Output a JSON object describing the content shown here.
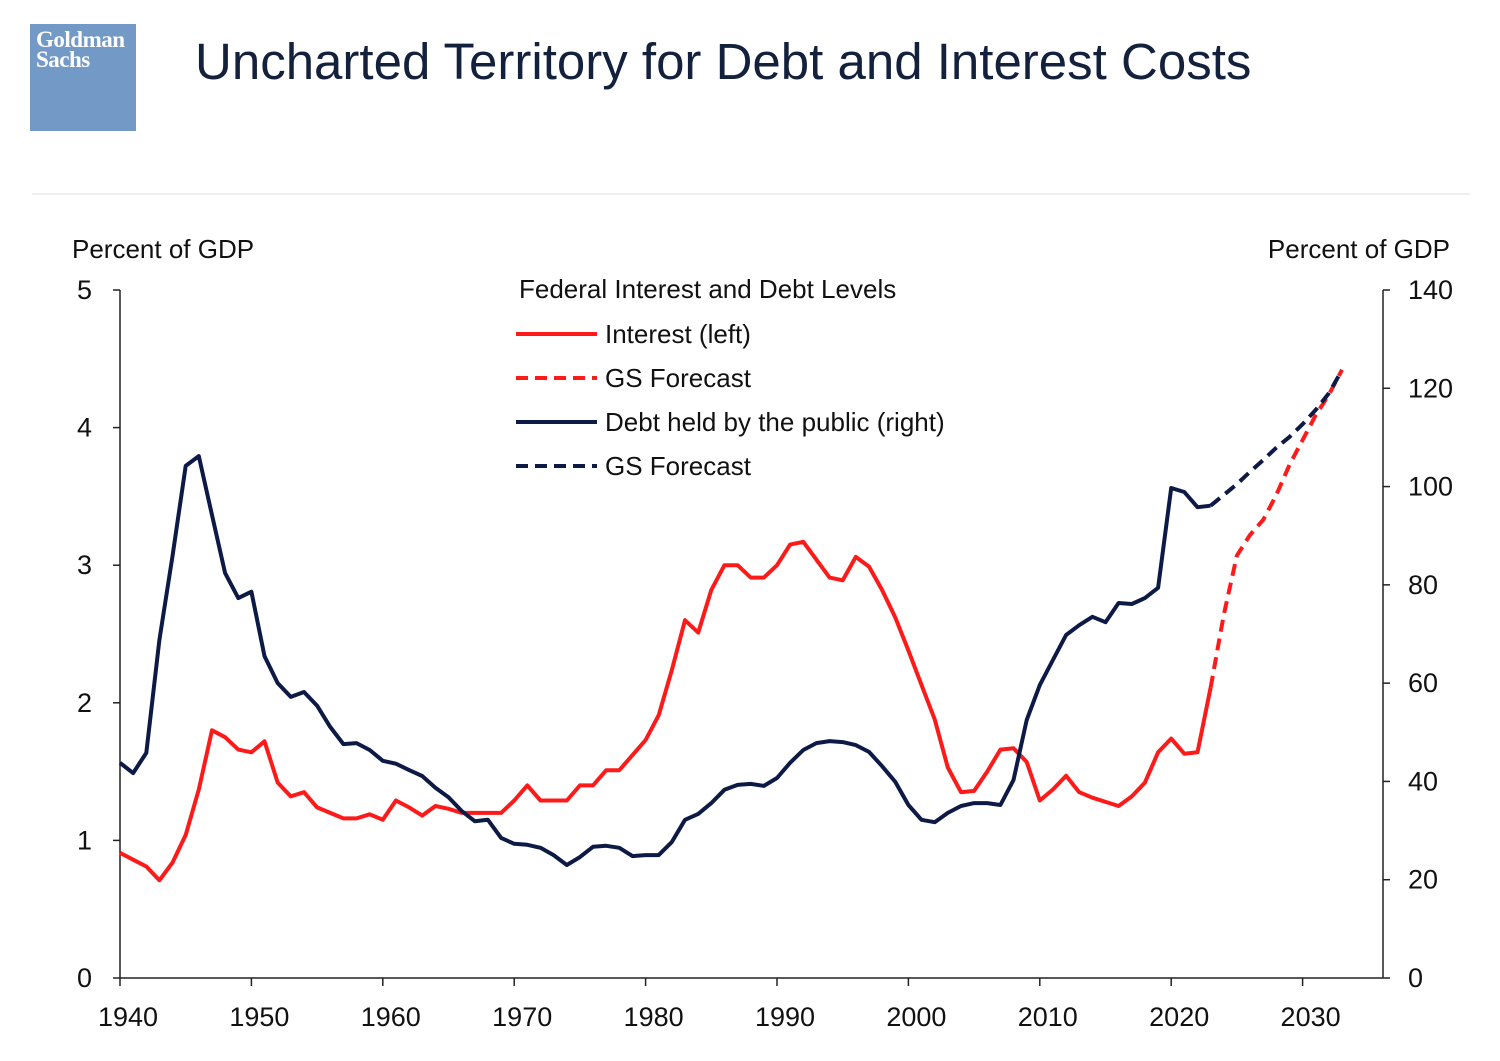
{
  "logo": {
    "line1": "Goldman",
    "line2": "Sachs",
    "color": "#7399c6"
  },
  "header": {
    "title": "Uncharted Territory for Debt and Interest Costs"
  },
  "chart_data": {
    "type": "line",
    "title": "Federal Interest and Debt Levels",
    "left_axis_label": "Percent of GDP",
    "right_axis_label": "Percent of GDP",
    "xlim": [
      1940,
      2036
    ],
    "ylim_left": [
      0,
      5
    ],
    "ylim_right": [
      0,
      140
    ],
    "x_ticks": [
      1940,
      1950,
      1960,
      1970,
      1980,
      1990,
      2000,
      2010,
      2020,
      2030
    ],
    "y_ticks_left": [
      0,
      1,
      2,
      3,
      4,
      5
    ],
    "y_ticks_right": [
      0,
      20,
      40,
      60,
      80,
      100,
      120,
      140
    ],
    "grid": false,
    "legend_position": "top-center",
    "series": [
      {
        "name": "Interest (left)",
        "axis": "left",
        "color": "#ff1a1a",
        "dash": false,
        "x": [
          1940,
          1941,
          1942,
          1943,
          1944,
          1945,
          1946,
          1947,
          1948,
          1949,
          1950,
          1951,
          1952,
          1953,
          1954,
          1955,
          1956,
          1957,
          1958,
          1959,
          1960,
          1961,
          1962,
          1963,
          1964,
          1965,
          1966,
          1967,
          1968,
          1969,
          1970,
          1971,
          1972,
          1973,
          1974,
          1975,
          1976,
          1977,
          1978,
          1979,
          1980,
          1981,
          1982,
          1983,
          1984,
          1985,
          1986,
          1987,
          1988,
          1989,
          1990,
          1991,
          1992,
          1993,
          1994,
          1995,
          1996,
          1997,
          1998,
          1999,
          2000,
          2001,
          2002,
          2003,
          2004,
          2005,
          2006,
          2007,
          2008,
          2009,
          2010,
          2011,
          2012,
          2013,
          2014,
          2015,
          2016,
          2017,
          2018,
          2019,
          2020,
          2021,
          2022,
          2023
        ],
        "y": [
          0.91,
          0.86,
          0.81,
          0.71,
          0.84,
          1.04,
          1.37,
          1.8,
          1.75,
          1.66,
          1.64,
          1.72,
          1.42,
          1.32,
          1.35,
          1.24,
          1.2,
          1.16,
          1.16,
          1.19,
          1.15,
          1.29,
          1.24,
          1.18,
          1.25,
          1.23,
          1.2,
          1.2,
          1.2,
          1.2,
          1.29,
          1.4,
          1.29,
          1.29,
          1.29,
          1.4,
          1.4,
          1.51,
          1.51,
          1.62,
          1.73,
          1.91,
          2.24,
          2.6,
          2.51,
          2.82,
          3.0,
          3.0,
          2.91,
          2.91,
          3.0,
          3.15,
          3.17,
          3.04,
          2.91,
          2.89,
          3.06,
          2.99,
          2.82,
          2.62,
          2.38,
          2.13,
          1.88,
          1.53,
          1.35,
          1.36,
          1.5,
          1.66,
          1.67,
          1.57,
          1.29,
          1.37,
          1.47,
          1.35,
          1.31,
          1.28,
          1.25,
          1.32,
          1.42,
          1.64,
          1.74,
          1.63,
          1.64,
          2.11
        ]
      },
      {
        "name": "GS Forecast",
        "axis": "left",
        "color": "#ff1a1a",
        "dash": true,
        "x": [
          2023,
          2024,
          2025,
          2026,
          2027,
          2028,
          2029,
          2030,
          2031,
          2032,
          2033
        ],
        "y": [
          2.11,
          2.64,
          3.07,
          3.22,
          3.33,
          3.51,
          3.73,
          3.91,
          4.09,
          4.24,
          4.42
        ]
      },
      {
        "name": "Debt held by the public (right)",
        "axis": "right",
        "color": "#0d1a45",
        "dash": false,
        "x": [
          1940,
          1941,
          1942,
          1943,
          1944,
          1945,
          1946,
          1947,
          1948,
          1949,
          1950,
          1951,
          1952,
          1953,
          1954,
          1955,
          1956,
          1957,
          1958,
          1959,
          1960,
          1961,
          1962,
          1963,
          1964,
          1965,
          1966,
          1967,
          1968,
          1969,
          1970,
          1971,
          1972,
          1973,
          1974,
          1975,
          1976,
          1977,
          1978,
          1979,
          1980,
          1981,
          1982,
          1983,
          1984,
          1985,
          1986,
          1987,
          1988,
          1989,
          1990,
          1991,
          1992,
          1993,
          1994,
          1995,
          1996,
          1997,
          1998,
          1999,
          2000,
          2001,
          2002,
          2003,
          2004,
          2005,
          2006,
          2007,
          2008,
          2009,
          2010,
          2011,
          2012,
          2013,
          2014,
          2015,
          2016,
          2017,
          2018,
          2019,
          2020,
          2021,
          2022,
          2023
        ],
        "y": [
          43.8,
          41.7,
          45.8,
          68.8,
          86.0,
          104.2,
          106.2,
          94.2,
          82.4,
          77.3,
          78.6,
          65.5,
          60.0,
          57.2,
          58.2,
          55.4,
          51.1,
          47.6,
          47.8,
          46.4,
          44.2,
          43.6,
          42.3,
          41.1,
          38.7,
          36.8,
          34.0,
          31.9,
          32.2,
          28.5,
          27.3,
          27.1,
          26.5,
          25.0,
          23.0,
          24.6,
          26.7,
          26.9,
          26.5,
          24.8,
          25.0,
          25.0,
          27.7,
          32.2,
          33.4,
          35.6,
          38.3,
          39.3,
          39.5,
          39.1,
          40.7,
          43.8,
          46.4,
          47.8,
          48.2,
          48.0,
          47.4,
          46.0,
          43.1,
          39.9,
          35.2,
          32.2,
          31.7,
          33.6,
          35.0,
          35.6,
          35.6,
          35.2,
          40.3,
          52.5,
          59.6,
          64.7,
          69.8,
          71.8,
          73.5,
          72.4,
          76.3,
          76.1,
          77.3,
          79.4,
          99.7,
          98.9,
          95.8,
          96.1
        ]
      },
      {
        "name": "GS Forecast",
        "axis": "right",
        "color": "#0d1a45",
        "dash": true,
        "x": [
          2023,
          2024,
          2025,
          2026,
          2027,
          2028,
          2029,
          2030,
          2031,
          2032,
          2033
        ],
        "y": [
          96.1,
          98.3,
          100.5,
          103.0,
          105.4,
          107.9,
          110.1,
          112.7,
          115.6,
          119.0,
          123.7
        ]
      }
    ]
  }
}
